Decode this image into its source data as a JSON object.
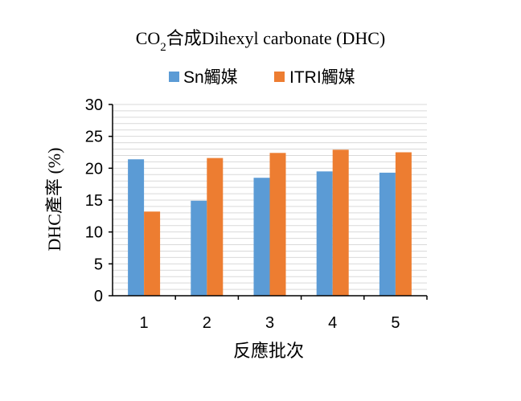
{
  "chart_data": {
    "type": "bar",
    "title": "CO2合成Dihexyl carbonate (DHC)",
    "title_parts": {
      "main": "CO",
      "subscript": "2",
      "rest": "合成Dihexyl carbonate (DHC)"
    },
    "xlabel": "反應批次",
    "ylabel": "DHC產率 (%)",
    "categories": [
      "1",
      "2",
      "3",
      "4",
      "5"
    ],
    "series": [
      {
        "name": "Sn觸媒",
        "color": "#5b9bd5",
        "values": [
          21.4,
          14.9,
          18.5,
          19.5,
          19.3
        ]
      },
      {
        "name": "ITRI觸媒",
        "color": "#ed7d31",
        "values": [
          13.2,
          21.6,
          22.4,
          22.9,
          22.5
        ]
      }
    ],
    "ylim": [
      0,
      30
    ],
    "yticks": [
      0,
      5,
      10,
      15,
      20,
      25,
      30
    ],
    "grid": true,
    "grid_color": "#d9d9d9",
    "axis_color": "#000000",
    "legend_position": "top"
  }
}
